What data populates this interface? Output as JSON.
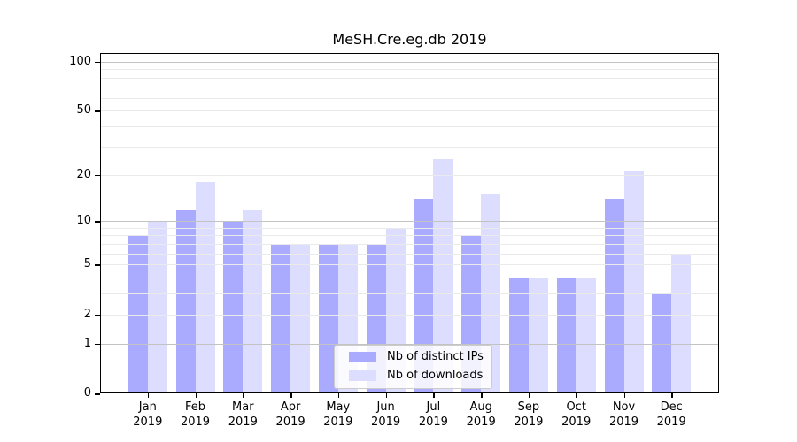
{
  "chart_data": {
    "type": "bar",
    "title": "MeSH.Cre.eg.db 2019",
    "scale": "log1p",
    "categories": [
      "Jan",
      "Feb",
      "Mar",
      "Apr",
      "May",
      "Jun",
      "Jul",
      "Aug",
      "Sep",
      "Oct",
      "Nov",
      "Dec"
    ],
    "year": "2019",
    "series": [
      {
        "name": "Nb of distinct IPs",
        "color": "#aaaaff",
        "values": [
          8,
          12,
          10,
          7,
          7,
          7,
          14,
          8,
          4,
          4,
          14,
          3
        ]
      },
      {
        "name": "Nb of downloads",
        "color": "#ddddff",
        "values": [
          10,
          18,
          12,
          7,
          7,
          9,
          25,
          15,
          4,
          4,
          21,
          6
        ]
      }
    ],
    "yticks": [
      0,
      1,
      2,
      5,
      10,
      20,
      50,
      100
    ],
    "grid": {
      "major": [
        1,
        10,
        100
      ],
      "minor": [
        2,
        3,
        4,
        5,
        6,
        7,
        8,
        9,
        20,
        30,
        40,
        50,
        60,
        70,
        80,
        90
      ],
      "major_color": "#c3c3c3",
      "minor_color": "#eaeaea"
    },
    "y_log_max": 2.057,
    "ylim": [
      0,
      113
    ],
    "legend_position": "lower center",
    "axis_color": "#000000",
    "background": "#ffffff"
  }
}
